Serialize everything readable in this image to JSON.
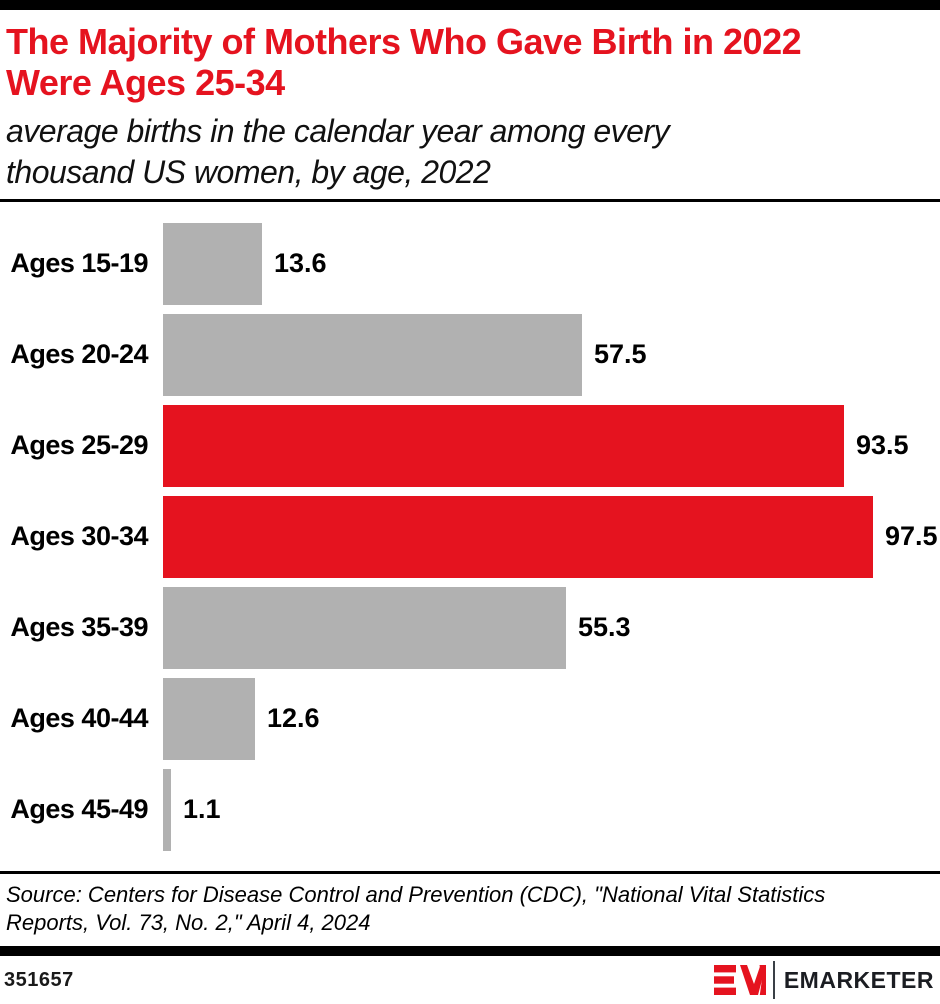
{
  "header": {
    "title": "The Majority of Mothers Who Gave Birth in 2022\nWere Ages 25-34",
    "subtitle": "average births in the calendar year among every\nthousand US women, by age, 2022"
  },
  "chart_data": {
    "type": "bar",
    "orientation": "horizontal",
    "title": "The Majority of Mothers Who Gave Birth in 2022 Were Ages 25-34",
    "subtitle": "average births in the calendar year among every thousand US women, by age, 2022",
    "categories": [
      "Ages 15-19",
      "Ages 20-24",
      "Ages 25-29",
      "Ages 30-34",
      "Ages 35-39",
      "Ages 40-44",
      "Ages 45-49"
    ],
    "values": [
      13.6,
      57.5,
      93.5,
      97.5,
      55.3,
      12.6,
      1.1
    ],
    "highlighted_categories": [
      "Ages 25-29",
      "Ages 30-34"
    ],
    "bar_colors": {
      "default": "#b1b1b1",
      "highlight": "#e5131f"
    },
    "value_labels_shown": true,
    "xlim": [
      0,
      100
    ],
    "grid": false,
    "legend": false
  },
  "source": {
    "text": "Source: Centers for Disease Control and Prevention (CDC), \"National Vital Statistics\nReports, Vol. 73, No. 2,\" April 4, 2024"
  },
  "footer": {
    "chart_id": "351657",
    "brand_name": "EMARKETER"
  },
  "colors": {
    "accent_red": "#e5131f",
    "bar_gray": "#b1b1b1",
    "rule_black": "#000000",
    "brand_text": "#1b1d22"
  }
}
